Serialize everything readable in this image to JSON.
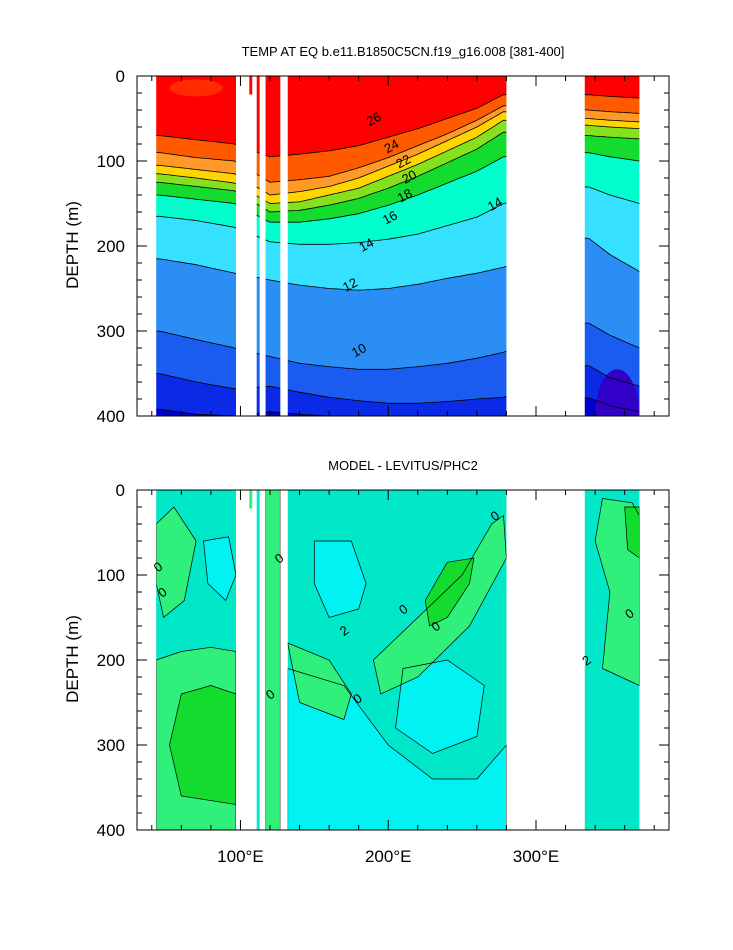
{
  "colors": {
    "temp_levels": [
      "#0000cc",
      "#0a2ae6",
      "#1a5cf0",
      "#2b8ef5",
      "#3cbef8",
      "#36e0ff",
      "#00f2f2",
      "#00ffcc",
      "#2ef07a",
      "#14dc2e",
      "#86e01e",
      "#dcf020",
      "#ffd400",
      "#ffb030",
      "#ff9a28",
      "#ff7a10",
      "#ff5a00",
      "#ff2a00",
      "#ff0000"
    ],
    "diff_levels": [
      "#00f2f2",
      "#00e8c8",
      "#2ef07a",
      "#14dc2e"
    ],
    "land": "#ffffff"
  },
  "chart_data": [
    {
      "type": "heatmap",
      "title": "TEMP AT EQ b.e11.B1850C5CN.f19_g16.008 [381-400]",
      "xlabel": "",
      "ylabel": "DEPTH (m)",
      "xlim": [
        30,
        390
      ],
      "ylim": [
        400,
        0
      ],
      "xticks": [
        100,
        200,
        300
      ],
      "xtick_labels": [
        "100°E",
        "200°E",
        "300°E"
      ],
      "yticks": [
        0,
        100,
        200,
        300,
        400
      ],
      "ytick_labels": [
        "0",
        "100",
        "200",
        "300",
        "400"
      ],
      "ocean_segments": [
        [
          43,
          97
        ],
        [
          111,
          113
        ],
        [
          117,
          127
        ],
        [
          132,
          280
        ],
        [
          333,
          370
        ]
      ],
      "levels": [
        8,
        9,
        10,
        11,
        12,
        13,
        14,
        15,
        16,
        17,
        18,
        19,
        20,
        21,
        22,
        23,
        24,
        25,
        26,
        27
      ],
      "isotherm_depths_x": [
        45,
        70,
        96,
        120,
        140,
        160,
        180,
        200,
        220,
        240,
        260,
        278,
        335,
        350,
        370
      ],
      "isotherm_depths": [
        {
          "t": 26,
          "d": [
            70,
            75,
            80,
            95,
            92,
            88,
            82,
            72,
            62,
            50,
            38,
            22,
            22,
            24,
            26
          ]
        },
        {
          "t": 24,
          "d": [
            90,
            96,
            100,
            125,
            122,
            118,
            108,
            96,
            82,
            68,
            52,
            35,
            40,
            42,
            44
          ]
        },
        {
          "t": 22,
          "d": [
            105,
            110,
            115,
            140,
            136,
            130,
            120,
            106,
            92,
            76,
            60,
            42,
            50,
            52,
            54
          ]
        },
        {
          "t": 20,
          "d": [
            115,
            120,
            126,
            150,
            148,
            140,
            132,
            118,
            104,
            88,
            72,
            52,
            58,
            60,
            62
          ]
        },
        {
          "t": 18,
          "d": [
            125,
            130,
            135,
            160,
            158,
            152,
            144,
            132,
            118,
            102,
            86,
            66,
            70,
            72,
            74
          ]
        },
        {
          "t": 16,
          "d": [
            140,
            145,
            150,
            172,
            172,
            168,
            162,
            152,
            140,
            126,
            112,
            95,
            90,
            95,
            100
          ]
        },
        {
          "t": 14,
          "d": [
            165,
            170,
            178,
            195,
            198,
            198,
            196,
            192,
            186,
            176,
            166,
            150,
            130,
            140,
            150
          ]
        },
        {
          "t": 12,
          "d": [
            215,
            222,
            232,
            240,
            246,
            250,
            252,
            250,
            245,
            238,
            232,
            225,
            190,
            210,
            230
          ]
        },
        {
          "t": 10,
          "d": [
            300,
            310,
            320,
            330,
            338,
            342,
            345,
            345,
            342,
            338,
            332,
            325,
            290,
            305,
            320
          ]
        },
        {
          "t": 9,
          "d": [
            350,
            360,
            368,
            365,
            372,
            378,
            382,
            385,
            385,
            383,
            380,
            378,
            340,
            355,
            365
          ]
        },
        {
          "t": 8,
          "d": [
            392,
            398,
            400,
            395,
            398,
            400,
            400,
            400,
            400,
            400,
            400,
            400,
            378,
            388,
            395
          ]
        }
      ],
      "contour_labels": [
        {
          "text": "26",
          "x": 190,
          "d": 50
        },
        {
          "text": "24",
          "x": 202,
          "d": 82
        },
        {
          "text": "22",
          "x": 210,
          "d": 100
        },
        {
          "text": "20",
          "x": 214,
          "d": 118
        },
        {
          "text": "18",
          "x": 211,
          "d": 140
        },
        {
          "text": "16",
          "x": 201,
          "d": 166
        },
        {
          "text": "14",
          "x": 185,
          "d": 198
        },
        {
          "text": "12",
          "x": 174,
          "d": 245
        },
        {
          "text": "10",
          "x": 180,
          "d": 322
        },
        {
          "text": "14",
          "x": 272,
          "d": 150
        }
      ]
    },
    {
      "type": "heatmap",
      "title": "MODEL - LEVITUS/PHC2",
      "xlabel": "",
      "ylabel": "DEPTH (m)",
      "xlim": [
        30,
        390
      ],
      "ylim": [
        400,
        0
      ],
      "xticks": [
        100,
        200,
        300
      ],
      "xtick_labels": [
        "100°E",
        "200°E",
        "300°E"
      ],
      "yticks": [
        0,
        100,
        200,
        300,
        400
      ],
      "ytick_labels": [
        "0",
        "100",
        "200",
        "300",
        "400"
      ],
      "ocean_segments": [
        [
          43,
          97
        ],
        [
          111,
          113
        ],
        [
          117,
          127
        ],
        [
          132,
          280
        ],
        [
          333,
          370
        ]
      ],
      "levels": [
        -2,
        0,
        2
      ],
      "contour_labels": [
        {
          "text": "0",
          "x": 44,
          "d": 90
        },
        {
          "text": "0",
          "x": 47,
          "d": 120
        },
        {
          "text": "0",
          "x": 126,
          "d": 80
        },
        {
          "text": "2",
          "x": 170,
          "d": 165
        },
        {
          "text": "0",
          "x": 210,
          "d": 140
        },
        {
          "text": "0",
          "x": 232,
          "d": 160
        },
        {
          "text": "0",
          "x": 272,
          "d": 30
        },
        {
          "text": "0",
          "x": 120,
          "d": 240
        },
        {
          "text": "0",
          "x": 179,
          "d": 245
        },
        {
          "text": "0",
          "x": 363,
          "d": 145
        },
        {
          "text": "2",
          "x": 334,
          "d": 200
        }
      ]
    }
  ]
}
